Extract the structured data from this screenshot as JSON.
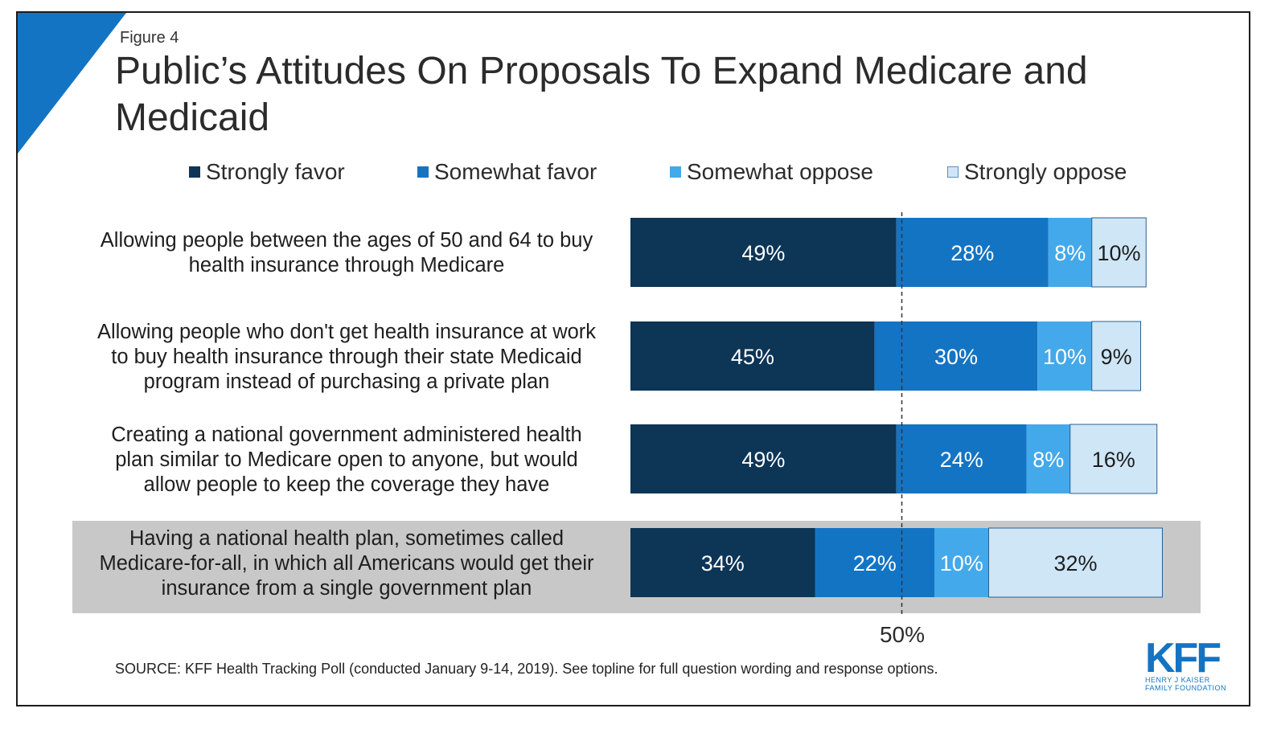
{
  "figure_label": "Figure 4",
  "title": "Public’s Attitudes On Proposals To Expand Medicare and Medicaid",
  "colors": {
    "strongly_favor": "#0d3556",
    "somewhat_favor": "#1474c4",
    "somewhat_oppose": "#44a9ea",
    "strongly_oppose": "#cfe6f7",
    "highlight": "#c8c8c8",
    "accent": "#1474c4"
  },
  "chart_data": {
    "type": "bar",
    "orientation": "horizontal",
    "stacked": true,
    "legend_position": "top",
    "grid": false,
    "reference_line": {
      "value": 50,
      "label": "50%"
    },
    "categories": [
      "Allowing people between the ages of 50 and 64 to buy health insurance through Medicare",
      "Allowing people who don't get health insurance at work to buy health insurance through their state Medicaid program instead of purchasing a private plan",
      "Creating a national government administered health plan similar to Medicare open to anyone, but would allow people to keep the coverage they have",
      "Having a national health plan, sometimes called Medicare-for-all, in which all Americans would get their insurance from a single government plan"
    ],
    "series": [
      {
        "name": "Strongly favor",
        "values": [
          49,
          45,
          49,
          34
        ]
      },
      {
        "name": "Somewhat favor",
        "values": [
          28,
          30,
          24,
          22
        ]
      },
      {
        "name": "Somewhat oppose",
        "values": [
          8,
          10,
          8,
          10
        ]
      },
      {
        "name": "Strongly oppose",
        "values": [
          10,
          9,
          16,
          32
        ]
      }
    ],
    "highlighted_category_index": 3
  },
  "row_labels": [
    [
      "Allowing people between the ages of 50 and 64 to buy",
      "health insurance through Medicare"
    ],
    [
      "Allowing people who don't get health insurance at work",
      "to buy health insurance through their state Medicaid",
      "program instead of purchasing a private plan"
    ],
    [
      "Creating a national government administered health",
      "plan similar to Medicare open to anyone, but would",
      "allow people to keep the coverage they have"
    ],
    [
      "Having a national health plan, sometimes called",
      "Medicare-for-all, in which all Americans would get their",
      "insurance from a single government plan"
    ]
  ],
  "fifty_label": "50%",
  "source": "SOURCE: KFF Health Tracking Poll (conducted January 9-14, 2019). See topline for full question wording and response options.",
  "logo": {
    "main": "KFF",
    "sub_line1": "HENRY J KAISER",
    "sub_line2": "FAMILY FOUNDATION"
  }
}
